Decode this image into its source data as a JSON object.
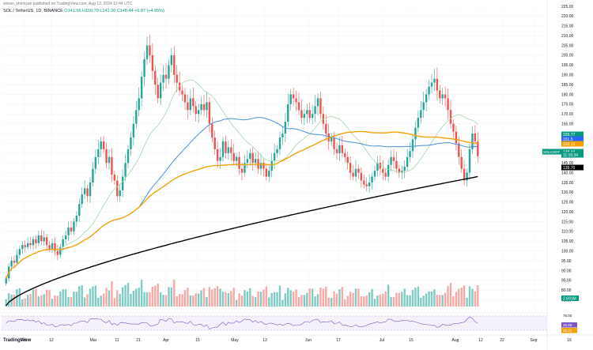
{
  "header": {
    "published": "sirean_shirinyan published on TradingView.com, Aug 12, 2024 12:44 UTC",
    "symbol": "SOL / TetherUS, 1D, BINANCE",
    "ohlc": "O141.56 H150.79 L141.30 C148.44 +6.87 (+4.85%)"
  },
  "watermark": "TradingView",
  "chart_data": {
    "type": "candlestick",
    "title": "SOL / TetherUS, 1D, BINANCE",
    "ylim": [
      70,
      225
    ],
    "y_ticks": [
      75,
      80,
      85,
      90,
      95,
      100,
      105,
      110,
      115,
      120,
      125,
      130,
      135,
      140,
      145,
      150,
      155,
      160,
      165,
      170,
      175,
      180,
      185,
      190,
      195,
      200,
      205,
      210,
      215,
      220,
      225
    ],
    "x_ticks": [
      "Feb",
      "12",
      "Mar",
      "11",
      "21",
      "Apr",
      "15",
      "May",
      "13",
      "Jun",
      "17",
      "Jul",
      "15",
      "Aug",
      "12",
      "22",
      "Sep",
      "16"
    ],
    "candles_close": [
      86,
      92,
      95,
      94,
      98,
      101,
      103,
      102,
      104,
      103,
      106,
      104,
      108,
      105,
      107,
      103,
      101,
      104,
      100,
      98,
      102,
      106,
      108,
      112,
      110,
      115,
      118,
      124,
      129,
      132,
      128,
      135,
      142,
      148,
      152,
      156,
      152,
      145,
      148,
      139,
      136,
      128,
      131,
      138,
      145,
      152,
      158,
      165,
      172,
      178,
      189,
      198,
      205,
      200,
      192,
      185,
      178,
      186,
      190,
      188,
      195,
      200,
      190,
      186,
      182,
      180,
      176,
      172,
      178,
      174,
      170,
      172,
      175,
      172,
      176,
      165,
      158,
      152,
      146,
      148,
      156,
      150,
      153,
      150,
      146,
      148,
      142,
      140,
      145,
      147,
      150,
      145,
      147,
      142,
      145,
      142,
      138,
      141,
      146,
      150,
      152,
      158,
      160,
      166,
      175,
      180,
      178,
      176,
      172,
      168,
      170,
      172,
      168,
      170,
      174,
      178,
      170,
      165,
      160,
      156,
      158,
      152,
      150,
      154,
      150,
      148,
      145,
      140,
      138,
      142,
      140,
      136,
      134,
      133,
      135,
      138,
      141,
      145,
      142,
      140,
      138,
      144,
      148,
      146,
      142,
      140,
      141,
      143,
      148,
      151,
      157,
      163,
      168,
      172,
      176,
      180,
      184,
      186,
      188,
      182,
      178,
      180,
      178,
      172,
      165,
      161,
      155,
      148,
      142,
      136,
      140,
      152,
      160,
      156,
      148.44
    ],
    "candles_open_offset_pct": 3,
    "sma_50": [
      97.29,
      151.7
    ],
    "ema_200": [
      140.07
    ],
    "price_labels": [
      {
        "text": "155.77",
        "color": "#089981"
      },
      {
        "text": "151.5",
        "color": "#2962ff"
      },
      {
        "text": "150.13",
        "color": "#f59f00"
      },
      {
        "text": "148.44",
        "color": "#089981"
      },
      {
        "text": "11:15:34",
        "color": "#089981"
      },
      {
        "text": "139.70",
        "color": "#000000"
      }
    ],
    "symbol_tag": "SOLUSDT",
    "volume_label": "2.691M",
    "rsi": {
      "levels": [
        70,
        30
      ],
      "labels": [
        "46.88",
        "45.21"
      ],
      "ylabels": [
        "75.00",
        "25.00"
      ]
    },
    "colors": {
      "up": "#26a69a",
      "down": "#ef5350",
      "ma20": "#a5d6a7",
      "ma50": "#4a90d9",
      "ma100": "#f0a30a",
      "ma200": "#000000",
      "rsi": "#7e57c2"
    }
  }
}
